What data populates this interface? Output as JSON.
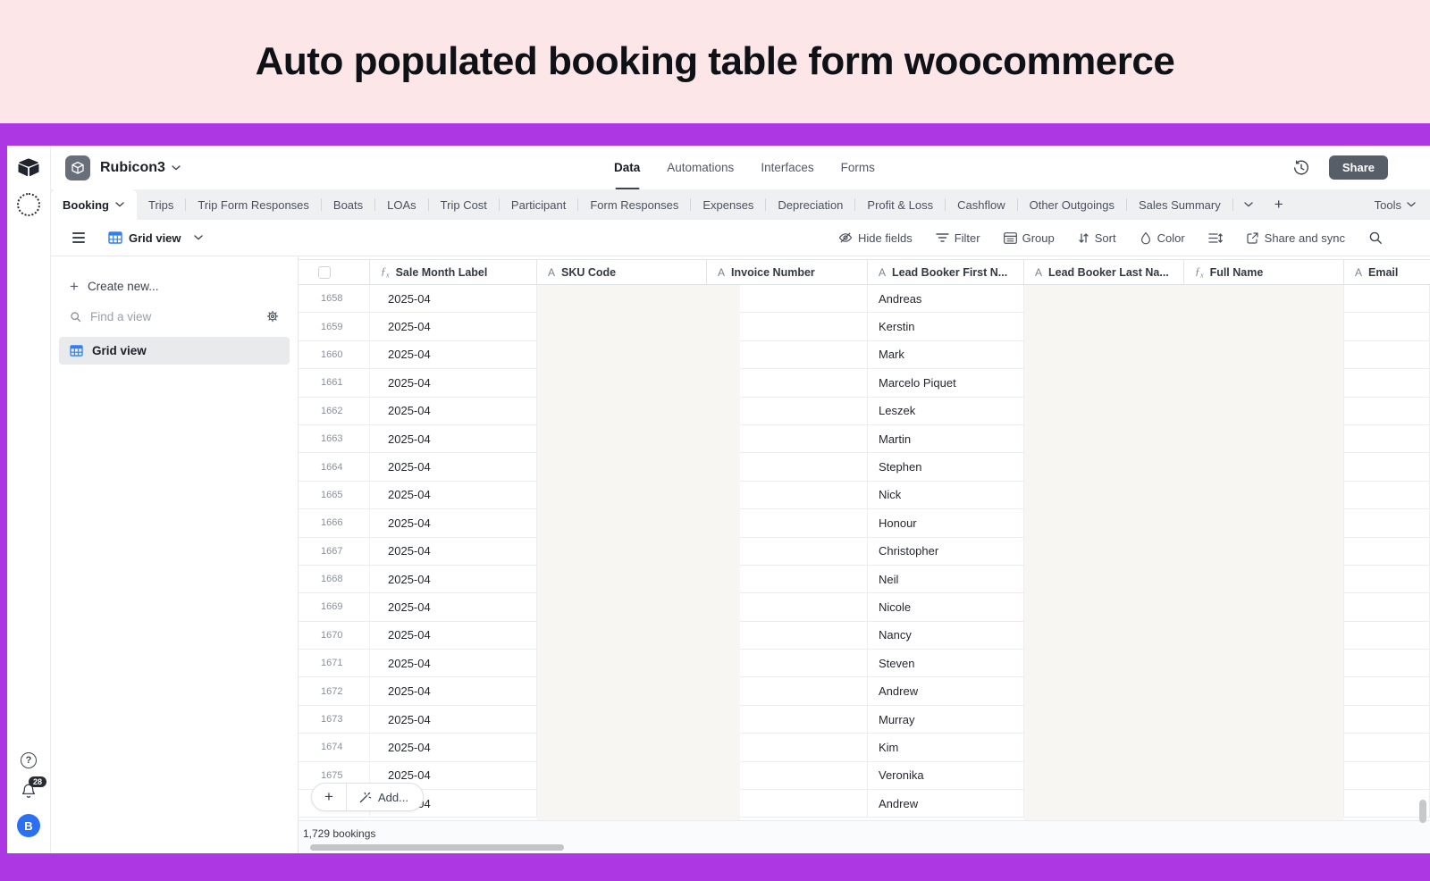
{
  "banner": {
    "title": "Auto populated booking table form woocommerce"
  },
  "header": {
    "app_name": "Rubicon3",
    "nav": [
      {
        "label": "Data",
        "active": true
      },
      {
        "label": "Automations",
        "active": false
      },
      {
        "label": "Interfaces",
        "active": false
      },
      {
        "label": "Forms",
        "active": false
      }
    ],
    "share_label": "Share"
  },
  "tabbar": {
    "active_tab": "Booking",
    "tabs": [
      "Trips",
      "Trip Form Responses",
      "Boats",
      "LOAs",
      "Trip Cost",
      "Participant",
      "Form Responses",
      "Expenses",
      "Depreciation",
      "Profit & Loss",
      "Cashflow",
      "Other Outgoings",
      "Sales Summary"
    ],
    "tools_label": "Tools"
  },
  "toolbar": {
    "view_name": "Grid view",
    "hide_fields": "Hide fields",
    "filter": "Filter",
    "group": "Group",
    "sort": "Sort",
    "color": "Color",
    "share_sync": "Share and sync"
  },
  "sidebar": {
    "create_new": "Create new...",
    "find_placeholder": "Find a view",
    "view_name": "Grid view"
  },
  "grid": {
    "columns": [
      {
        "label": "",
        "type": "checkbox"
      },
      {
        "label": "Sale Month Label",
        "type": "formula"
      },
      {
        "label": "SKU Code",
        "type": "text"
      },
      {
        "label": "Invoice Number",
        "type": "text"
      },
      {
        "label": "Lead Booker First N...",
        "type": "text"
      },
      {
        "label": "Lead Booker Last Na...",
        "type": "text"
      },
      {
        "label": "Full Name",
        "type": "formula"
      },
      {
        "label": "Email",
        "type": "text"
      }
    ],
    "rows": [
      {
        "num": "1658",
        "sale_month": "2025-04",
        "first_name": "Andreas"
      },
      {
        "num": "1659",
        "sale_month": "2025-04",
        "first_name": "Kerstin"
      },
      {
        "num": "1660",
        "sale_month": "2025-04",
        "first_name": "Mark"
      },
      {
        "num": "1661",
        "sale_month": "2025-04",
        "first_name": "Marcelo Piquet"
      },
      {
        "num": "1662",
        "sale_month": "2025-04",
        "first_name": "Leszek"
      },
      {
        "num": "1663",
        "sale_month": "2025-04",
        "first_name": "Martin"
      },
      {
        "num": "1664",
        "sale_month": "2025-04",
        "first_name": "Stephen"
      },
      {
        "num": "1665",
        "sale_month": "2025-04",
        "first_name": "Nick"
      },
      {
        "num": "1666",
        "sale_month": "2025-04",
        "first_name": "Honour"
      },
      {
        "num": "1667",
        "sale_month": "2025-04",
        "first_name": "Christopher"
      },
      {
        "num": "1668",
        "sale_month": "2025-04",
        "first_name": "Neil"
      },
      {
        "num": "1669",
        "sale_month": "2025-04",
        "first_name": "Nicole"
      },
      {
        "num": "1670",
        "sale_month": "2025-04",
        "first_name": "Nancy"
      },
      {
        "num": "1671",
        "sale_month": "2025-04",
        "first_name": "Steven"
      },
      {
        "num": "1672",
        "sale_month": "2025-04",
        "first_name": "Andrew"
      },
      {
        "num": "1673",
        "sale_month": "2025-04",
        "first_name": "Murray"
      },
      {
        "num": "1674",
        "sale_month": "2025-04",
        "first_name": "Kim"
      },
      {
        "num": "1675",
        "sale_month": "2025-04",
        "first_name": "Veronika"
      },
      {
        "num": "",
        "sale_month": "2025-04",
        "first_name": "Andrew"
      }
    ]
  },
  "footer": {
    "add_label": "Add...",
    "record_count": "1,729 bookings"
  },
  "rail": {
    "notification_count": "28",
    "avatar_initial": "B",
    "help_glyph": "?"
  },
  "colors": {
    "banner_pink": "#fce6e8",
    "accent_purple": "#ad37e2",
    "brand_blue": "#2d7ff9",
    "share_button": "#585e68",
    "redaction_overlay": "#f7f6f2",
    "avatar_blue": "#2b6ff2"
  }
}
